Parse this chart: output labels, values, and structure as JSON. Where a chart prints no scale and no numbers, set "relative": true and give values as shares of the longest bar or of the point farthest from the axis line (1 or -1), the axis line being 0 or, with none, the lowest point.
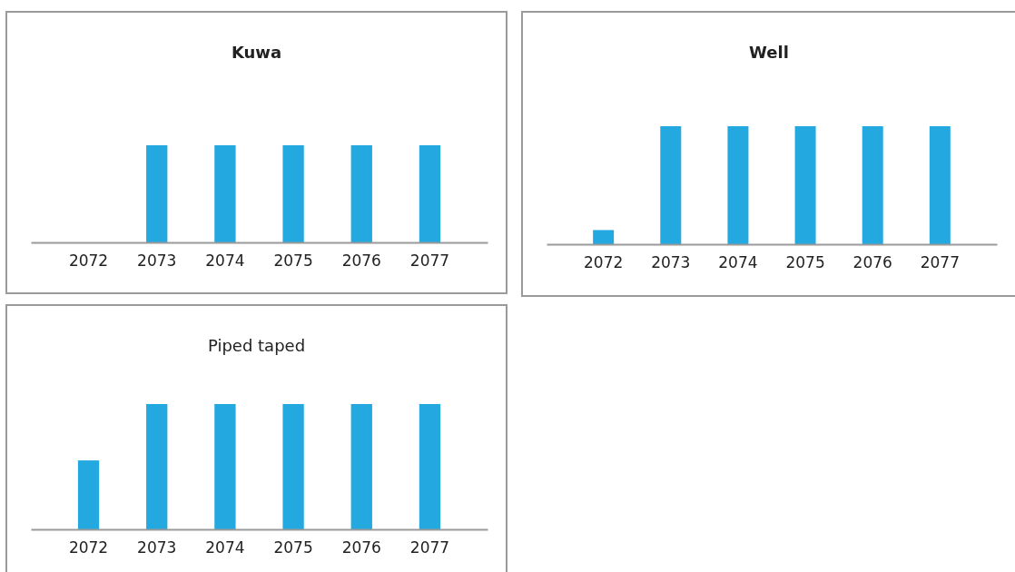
{
  "chart_data": [
    {
      "type": "bar",
      "title": "Kuwa",
      "categories": [
        "2072",
        "2073",
        "2074",
        "2075",
        "2076",
        "2077"
      ],
      "values": [
        0,
        1,
        1,
        1,
        1,
        1
      ],
      "color": "#23a8e0",
      "relative": true
    },
    {
      "type": "bar",
      "title": "Well",
      "categories": [
        "2072",
        "2073",
        "2074",
        "2075",
        "2076",
        "2077"
      ],
      "values": [
        0.12,
        1,
        1,
        1,
        1,
        1
      ],
      "color": "#23a8e0",
      "relative": true
    },
    {
      "type": "bar",
      "title": "Piped taped",
      "categories": [
        "2072",
        "2073",
        "2074",
        "2075",
        "2076",
        "2077"
      ],
      "values": [
        0.55,
        1,
        1,
        1,
        1,
        1
      ],
      "color": "#23a8e0",
      "relative": true
    }
  ]
}
